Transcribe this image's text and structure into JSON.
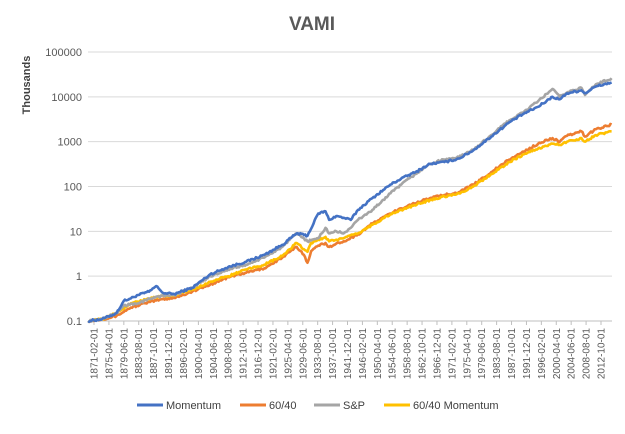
{
  "chart_data": {
    "type": "line",
    "title": "VAMI",
    "ylabel": "Thousands",
    "xlabel": "",
    "yscale": "log",
    "ylim": [
      0.1,
      100000
    ],
    "yticks": [
      "0.1",
      "1",
      "10",
      "100",
      "1000",
      "10000",
      "100000"
    ],
    "xrange": [
      1871.083,
      2016.5
    ],
    "xtick_labels": [
      "1871-02-01",
      "1875-04-01",
      "1879-06-01",
      "1883-08-01",
      "1887-10-01",
      "1891-12-01",
      "1896-02-01",
      "1900-04-01",
      "1904-06-01",
      "1908-08-01",
      "1912-10-01",
      "1916-12-01",
      "1921-02-01",
      "1925-04-01",
      "1929-06-01",
      "1933-08-01",
      "1937-10-01",
      "1941-12-01",
      "1946-02-01",
      "1950-04-01",
      "1954-06-01",
      "1958-08-01",
      "1962-10-01",
      "1966-12-01",
      "1971-02-01",
      "1975-04-01",
      "1979-06-01",
      "1983-08-01",
      "1987-10-01",
      "1991-12-01",
      "1996-02-01",
      "2000-04-01",
      "2004-06-01",
      "2008-08-01",
      "2012-10-01"
    ],
    "legend_position": "bottom",
    "series": [
      {
        "name": "Momentum",
        "color": "#4472C4",
        "x": [
          1871.1,
          1875,
          1879,
          1881,
          1883,
          1885,
          1888,
          1890,
          1891,
          1892,
          1895,
          1900,
          1905,
          1910,
          1915,
          1920,
          1925,
          1929,
          1932,
          1935,
          1937,
          1938,
          1940,
          1942,
          1944,
          1946,
          1950,
          1955,
          1958,
          1962,
          1966,
          1970,
          1974,
          1978,
          1983,
          1988,
          1992,
          1996,
          2000,
          2002,
          2004,
          2008,
          2009,
          2012,
          2016.4
        ],
        "y": [
          0.1,
          0.11,
          0.15,
          0.28,
          0.32,
          0.38,
          0.45,
          0.6,
          0.5,
          0.42,
          0.4,
          0.55,
          1.1,
          1.6,
          2.1,
          3,
          5,
          9,
          8,
          25,
          28,
          18,
          22,
          20,
          18,
          30,
          55,
          110,
          150,
          210,
          320,
          350,
          420,
          640,
          1300,
          2700,
          4200,
          6000,
          10000,
          8800,
          12000,
          14000,
          12000,
          17000,
          21000
        ]
      },
      {
        "name": "60/40",
        "color": "#ED7D31",
        "x": [
          1871.1,
          1875,
          1879,
          1883,
          1887,
          1891,
          1895,
          1900,
          1905,
          1910,
          1915,
          1920,
          1925,
          1929,
          1931,
          1932,
          1933,
          1935,
          1937,
          1938,
          1942,
          1946,
          1950,
          1955,
          1960,
          1966,
          1970,
          1974,
          1978,
          1983,
          1988,
          1992,
          1996,
          2000,
          2002,
          2004,
          2008,
          2009,
          2012,
          2016.4
        ],
        "y": [
          0.1,
          0.11,
          0.13,
          0.2,
          0.25,
          0.3,
          0.33,
          0.45,
          0.65,
          0.95,
          1.2,
          1.5,
          2.6,
          4.5,
          3,
          2,
          3.6,
          4.8,
          5.5,
          4.5,
          6,
          8.5,
          15,
          25,
          38,
          55,
          65,
          75,
          110,
          210,
          400,
          600,
          900,
          1200,
          1000,
          1350,
          1700,
          1300,
          1900,
          2400
        ]
      },
      {
        "name": "S&P",
        "color": "#A5A5A5",
        "x": [
          1871.1,
          1875,
          1879,
          1881,
          1885,
          1890,
          1895,
          1900,
          1905,
          1910,
          1915,
          1920,
          1925,
          1929,
          1930,
          1932,
          1935,
          1937,
          1938,
          1940,
          1942,
          1944,
          1946,
          1950,
          1955,
          1958,
          1962,
          1966,
          1970,
          1974,
          1978,
          1983,
          1988,
          1992,
          1996,
          2000,
          2002,
          2004,
          2008,
          2009,
          2012,
          2016.4
        ],
        "y": [
          0.1,
          0.11,
          0.15,
          0.22,
          0.25,
          0.35,
          0.38,
          0.55,
          1,
          1.4,
          1.8,
          2.6,
          4.5,
          9,
          8,
          6,
          7,
          12,
          9,
          10,
          9,
          12,
          18,
          30,
          70,
          110,
          190,
          320,
          400,
          450,
          660,
          1400,
          3000,
          4600,
          8000,
          15000,
          10000,
          12500,
          16000,
          11000,
          19000,
          26000
        ]
      },
      {
        "name": "60/40 Momentum",
        "color": "#FFC000",
        "x": [
          1871.1,
          1875,
          1879,
          1883,
          1887,
          1891,
          1895,
          1900,
          1905,
          1910,
          1915,
          1920,
          1925,
          1929,
          1931,
          1932,
          1933,
          1935,
          1937,
          1938,
          1940,
          1942,
          1946,
          1950,
          1955,
          1960,
          1966,
          1970,
          1974,
          1978,
          1983,
          1988,
          1992,
          1996,
          2000,
          2002,
          2004,
          2008,
          2009,
          2012,
          2016.4
        ],
        "y": [
          0.1,
          0.11,
          0.15,
          0.25,
          0.3,
          0.35,
          0.37,
          0.5,
          0.75,
          1,
          1.4,
          1.8,
          2.8,
          5.5,
          4,
          3.5,
          5.5,
          6.5,
          7.5,
          6,
          6.5,
          7,
          9,
          14,
          24,
          34,
          50,
          60,
          70,
          100,
          190,
          350,
          520,
          700,
          900,
          850,
          1000,
          1200,
          1000,
          1400,
          1700
        ]
      }
    ]
  }
}
